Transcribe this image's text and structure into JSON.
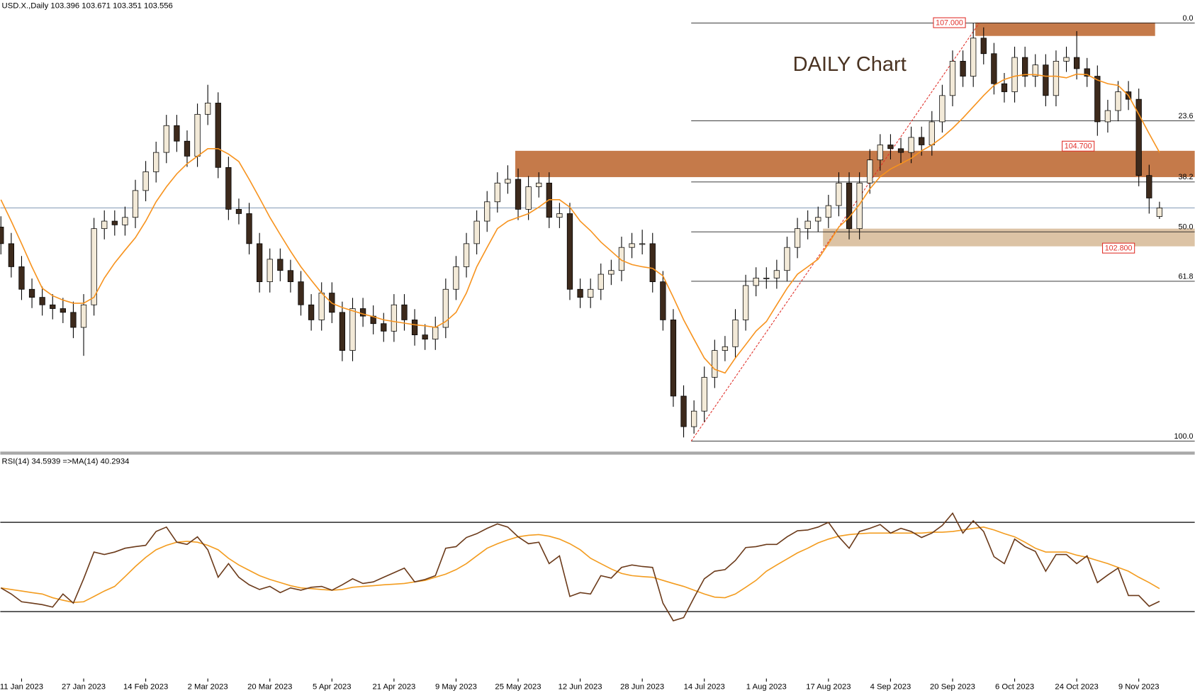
{
  "chart_data": [
    {
      "type": "candlestick",
      "title": "USD.X.,Daily",
      "header_values": [
        103.396,
        103.671,
        103.351,
        103.556
      ],
      "annotation": "DAILY Chart",
      "ylim": [
        99.03,
        107.43
      ],
      "categories": [
        null,
        null,
        "11 Jan 2023",
        null,
        null,
        null,
        null,
        null,
        "27 Jan 2023",
        null,
        null,
        null,
        null,
        null,
        "14 Feb 2023",
        null,
        null,
        null,
        null,
        null,
        "2 Mar 2023",
        null,
        null,
        null,
        null,
        null,
        "20 Mar 2023",
        null,
        null,
        null,
        null,
        null,
        "5 Apr 2023",
        null,
        null,
        null,
        null,
        null,
        "21 Apr 2023",
        null,
        null,
        null,
        null,
        null,
        "9 May 2023",
        null,
        null,
        null,
        null,
        null,
        "25 May 2023",
        null,
        null,
        null,
        null,
        null,
        "12 Jun 2023",
        null,
        null,
        null,
        null,
        null,
        "28 Jun 2023",
        null,
        null,
        null,
        null,
        null,
        "14 Jul 2023",
        null,
        null,
        null,
        null,
        null,
        "1 Aug 2023",
        null,
        null,
        null,
        null,
        null,
        "17 Aug 2023",
        null,
        null,
        null,
        null,
        null,
        "4 Sep 2023",
        null,
        null,
        null,
        null,
        null,
        "20 Sep 2023",
        null,
        null,
        null,
        null,
        null,
        "6 Oct 2023",
        null,
        null,
        null,
        null,
        null,
        "24 Oct 2023",
        null,
        null,
        null,
        null,
        null,
        "9 Nov 2023",
        null,
        null
      ],
      "open": [
        103.2,
        102.89,
        102.46,
        102.04,
        101.89,
        101.75,
        101.68,
        101.61,
        101.33,
        101.75,
        103.17,
        103.31,
        103.24,
        103.38,
        103.88,
        104.23,
        104.59,
        105.09,
        104.8,
        104.52,
        105.3,
        105.51,
        104.31,
        103.53,
        103.45,
        102.89,
        102.18,
        102.6,
        102.39,
        102.18,
        101.75,
        101.47,
        101.97,
        101.61,
        100.9,
        101.68,
        101.54,
        101.4,
        101.26,
        101.75,
        101.47,
        101.19,
        101.11,
        101.33,
        102.04,
        102.46,
        102.89,
        103.31,
        103.67,
        104.02,
        104.09,
        103.53,
        103.95,
        104.02,
        103.38,
        103.45,
        102.04,
        101.89,
        102.04,
        102.32,
        102.39,
        102.82,
        102.89,
        102.89,
        102.18,
        101.47,
        100.05,
        99.48,
        99.77,
        100.4,
        100.9,
        100.97,
        101.47,
        102.11,
        102.25,
        102.25,
        102.39,
        102.82,
        103.17,
        103.31,
        103.38,
        103.6,
        104.02,
        103.17,
        104.02,
        104.45,
        104.73,
        104.66,
        104.59,
        104.87,
        104.73,
        105.16,
        105.65,
        106.29,
        106.01,
        106.72,
        106.43,
        105.87,
        105.72,
        106.36,
        106.01,
        106.22,
        105.65,
        106.29,
        106.36,
        106.15,
        106.01,
        105.16,
        105.37,
        105.72,
        105.58,
        104.16,
        103.396
      ],
      "high": [
        103.4,
        103.09,
        102.66,
        102.24,
        102.09,
        101.95,
        101.88,
        101.81,
        101.95,
        103.37,
        103.51,
        103.51,
        103.58,
        104.08,
        104.43,
        104.79,
        105.29,
        105.29,
        105.0,
        105.5,
        105.85,
        105.71,
        104.51,
        103.73,
        103.65,
        103.09,
        102.8,
        102.8,
        102.59,
        102.38,
        101.95,
        102.17,
        102.17,
        101.81,
        101.88,
        101.88,
        101.74,
        101.6,
        101.95,
        101.95,
        101.67,
        101.39,
        101.53,
        102.24,
        102.66,
        103.09,
        103.51,
        103.87,
        104.22,
        104.35,
        104.29,
        104.15,
        104.22,
        104.22,
        103.65,
        103.65,
        102.24,
        102.24,
        102.52,
        102.59,
        103.02,
        103.09,
        103.15,
        103.09,
        102.38,
        101.67,
        100.25,
        99.97,
        100.6,
        101.1,
        101.17,
        101.67,
        102.31,
        102.45,
        102.45,
        102.59,
        103.02,
        103.37,
        103.51,
        103.58,
        103.8,
        104.22,
        104.22,
        104.22,
        104.65,
        104.93,
        104.93,
        104.86,
        105.07,
        105.07,
        105.36,
        105.85,
        106.49,
        106.49,
        107.0,
        106.92,
        106.63,
        106.07,
        106.56,
        106.56,
        106.42,
        106.42,
        106.49,
        106.56,
        106.85,
        106.35,
        106.21,
        105.57,
        105.92,
        105.92,
        105.78,
        104.36,
        103.671
      ],
      "low": [
        102.69,
        102.26,
        101.84,
        101.69,
        101.55,
        101.48,
        101.41,
        101.13,
        100.8,
        101.55,
        102.97,
        103.04,
        103.04,
        103.18,
        103.68,
        104.03,
        104.39,
        104.6,
        104.32,
        104.32,
        105.1,
        104.11,
        103.33,
        103.25,
        102.69,
        101.98,
        101.98,
        102.19,
        101.98,
        101.55,
        101.27,
        101.27,
        101.41,
        100.7,
        100.7,
        101.34,
        101.2,
        101.06,
        101.06,
        101.27,
        100.99,
        100.91,
        100.91,
        101.13,
        101.84,
        102.26,
        102.69,
        103.11,
        103.47,
        103.82,
        103.33,
        103.33,
        103.75,
        103.18,
        103.18,
        101.84,
        101.69,
        101.69,
        101.84,
        102.12,
        102.19,
        102.62,
        102.69,
        101.98,
        101.27,
        99.85,
        99.28,
        99.35,
        99.57,
        100.2,
        100.7,
        100.77,
        101.27,
        101.91,
        102.05,
        102.05,
        102.19,
        102.62,
        102.97,
        103.11,
        103.18,
        103.4,
        102.97,
        102.97,
        103.82,
        104.25,
        104.46,
        104.39,
        104.39,
        104.53,
        104.53,
        104.96,
        105.45,
        105.81,
        105.81,
        106.23,
        105.67,
        105.52,
        105.52,
        105.81,
        105.81,
        105.45,
        105.45,
        106.09,
        105.95,
        105.81,
        104.9,
        104.96,
        105.17,
        105.38,
        103.96,
        103.45,
        103.351
      ],
      "close": [
        102.89,
        102.46,
        102.04,
        101.89,
        101.75,
        101.68,
        101.61,
        101.33,
        101.75,
        103.17,
        103.31,
        103.24,
        103.38,
        103.88,
        104.23,
        104.59,
        105.09,
        104.8,
        104.52,
        105.3,
        105.51,
        104.31,
        103.53,
        103.45,
        102.89,
        102.18,
        102.6,
        102.39,
        102.18,
        101.75,
        101.47,
        101.97,
        101.61,
        100.9,
        101.68,
        101.54,
        101.4,
        101.26,
        101.75,
        101.47,
        101.19,
        101.11,
        101.33,
        102.04,
        102.46,
        102.89,
        103.31,
        103.67,
        104.02,
        104.09,
        103.53,
        103.95,
        104.02,
        103.38,
        103.45,
        102.04,
        101.89,
        102.04,
        102.32,
        102.39,
        102.82,
        102.89,
        102.89,
        102.18,
        101.47,
        100.05,
        99.48,
        99.77,
        100.4,
        100.9,
        100.97,
        101.47,
        102.11,
        102.25,
        102.25,
        102.39,
        102.82,
        103.17,
        103.31,
        103.38,
        103.6,
        104.02,
        103.17,
        104.02,
        104.45,
        104.73,
        104.66,
        104.59,
        104.87,
        104.73,
        105.16,
        105.65,
        106.29,
        106.01,
        106.72,
        106.43,
        105.87,
        105.72,
        106.36,
        106.01,
        106.22,
        105.65,
        106.29,
        106.36,
        106.15,
        106.01,
        105.16,
        105.37,
        105.72,
        105.58,
        104.16,
        103.74,
        103.556
      ],
      "overlays": [
        {
          "color": "#f7931e",
          "values": [
            103.71,
            103.31,
            102.89,
            102.46,
            102.06,
            101.92,
            101.84,
            101.78,
            101.78,
            101.89,
            102.25,
            102.53,
            102.77,
            103.0,
            103.31,
            103.67,
            103.95,
            104.19,
            104.38,
            104.52,
            104.66,
            104.66,
            104.56,
            104.42,
            104.09,
            103.74,
            103.38,
            103.06,
            102.75,
            102.46,
            102.21,
            101.97,
            101.78,
            101.7,
            101.64,
            101.58,
            101.53,
            101.47,
            101.44,
            101.41,
            101.38,
            101.36,
            101.33,
            101.44,
            101.61,
            101.97,
            102.46,
            102.82,
            103.17,
            103.31,
            103.38,
            103.45,
            103.57,
            103.71,
            103.71,
            103.57,
            103.31,
            103.13,
            102.92,
            102.75,
            102.58,
            102.5,
            102.46,
            102.43,
            102.29,
            101.89,
            101.47,
            101.11,
            100.76,
            100.55,
            100.48,
            100.76,
            101.01,
            101.26,
            101.44,
            101.75,
            102.06,
            102.32,
            102.46,
            102.6,
            102.89,
            103.2,
            103.38,
            103.62,
            103.91,
            104.14,
            104.28,
            104.38,
            104.48,
            104.62,
            104.73,
            104.87,
            105.04,
            105.23,
            105.44,
            105.65,
            105.84,
            105.95,
            106.01,
            106.04,
            106.04,
            106.01,
            106.01,
            105.98,
            106.05,
            106.04,
            105.94,
            105.87,
            105.84,
            105.65,
            105.3,
            104.94,
            104.59
          ]
        }
      ],
      "fib_levels": [
        {
          "value": 107.0,
          "label": "0.0"
        },
        {
          "value": 105.18,
          "label": "23.6"
        },
        {
          "value": 104.04,
          "label": "38.2"
        },
        {
          "value": 103.11,
          "label": "50.0"
        },
        {
          "value": 102.19,
          "label": "61.8"
        },
        {
          "value": 99.21,
          "label": "100.0"
        }
      ],
      "price_labels": [
        {
          "value": 107.0,
          "label": "107.000"
        },
        {
          "value": 104.7,
          "label": "104.700"
        },
        {
          "value": 102.8,
          "label": "102.800"
        }
      ],
      "zones": [
        {
          "top": 107.01,
          "bottom": 106.76,
          "color": "#c57a4a"
        },
        {
          "top": 104.62,
          "bottom": 104.13,
          "color": "#c57a4a"
        },
        {
          "top": 103.17,
          "bottom": 102.84,
          "color": "#dcc3a5"
        }
      ]
    },
    {
      "type": "line",
      "ylim": [
        0,
        100
      ],
      "levels": [
        70,
        30
      ],
      "series": [
        {
          "name": "RSI(14)",
          "last": 34.5939,
          "color": "#6b3a1a",
          "values": [
            40.6,
            37.9,
            34.4,
            33.8,
            33.1,
            32.0,
            37.9,
            33.8,
            44.7,
            56.7,
            55.6,
            56.7,
            58.4,
            59.1,
            59.7,
            65.9,
            67.9,
            61.1,
            60.1,
            63.5,
            57.7,
            45.4,
            51.5,
            45.4,
            42.0,
            39.9,
            41.3,
            38.5,
            40.6,
            39.6,
            40.9,
            41.3,
            39.6,
            42.0,
            44.7,
            42.6,
            43.3,
            45.4,
            47.4,
            49.5,
            43.3,
            44.4,
            46.1,
            58.4,
            59.1,
            63.2,
            64.9,
            67.3,
            69.3,
            67.9,
            63.5,
            60.4,
            61.1,
            51.5,
            55.0,
            36.8,
            38.5,
            37.9,
            46.1,
            45.0,
            49.8,
            50.9,
            50.2,
            49.8,
            33.8,
            25.9,
            27.3,
            36.2,
            44.7,
            48.1,
            48.8,
            52.9,
            58.7,
            59.1,
            60.1,
            60.1,
            63.5,
            66.2,
            66.6,
            67.9,
            70.0,
            63.5,
            58.4,
            65.9,
            67.3,
            69.0,
            65.2,
            67.3,
            65.9,
            63.2,
            65.2,
            68.6,
            74.1,
            65.2,
            70.7,
            65.9,
            54.6,
            51.5,
            62.5,
            59.1,
            57.0,
            48.1,
            55.6,
            55.6,
            51.5,
            55.0,
            43.0,
            46.4,
            49.5,
            37.2,
            37.2,
            32.4,
            34.6
          ]
        },
        {
          "name": "=>MA(14)",
          "last": 40.2934,
          "color": "#f39c1f",
          "values": [
            40.6,
            39.9,
            39.2,
            38.5,
            37.9,
            36.2,
            35.1,
            34.1,
            34.4,
            36.8,
            39.2,
            41.3,
            45.7,
            50.2,
            54.3,
            57.7,
            59.7,
            61.1,
            61.5,
            61.1,
            59.7,
            57.7,
            53.9,
            50.9,
            48.5,
            46.1,
            44.4,
            43.0,
            41.6,
            40.6,
            40.3,
            39.9,
            39.6,
            39.9,
            40.9,
            41.3,
            41.6,
            42.0,
            42.3,
            42.6,
            43.3,
            44.0,
            45.4,
            46.8,
            48.8,
            51.5,
            55.0,
            58.4,
            60.4,
            62.1,
            63.5,
            64.2,
            64.5,
            63.8,
            62.5,
            60.4,
            57.7,
            53.9,
            51.5,
            49.1,
            47.1,
            46.1,
            45.7,
            45.4,
            44.0,
            42.6,
            41.3,
            39.6,
            37.9,
            36.5,
            36.2,
            37.9,
            40.9,
            44.0,
            48.1,
            50.9,
            53.6,
            56.3,
            58.4,
            60.8,
            62.5,
            63.8,
            64.5,
            64.9,
            65.2,
            65.2,
            65.2,
            65.2,
            65.2,
            65.2,
            65.6,
            65.6,
            65.9,
            66.6,
            67.3,
            67.9,
            66.6,
            64.9,
            63.5,
            61.1,
            58.4,
            56.7,
            56.7,
            56.7,
            55.3,
            54.3,
            52.9,
            51.5,
            49.8,
            48.1,
            45.4,
            43.0,
            40.3
          ]
        }
      ]
    }
  ]
}
